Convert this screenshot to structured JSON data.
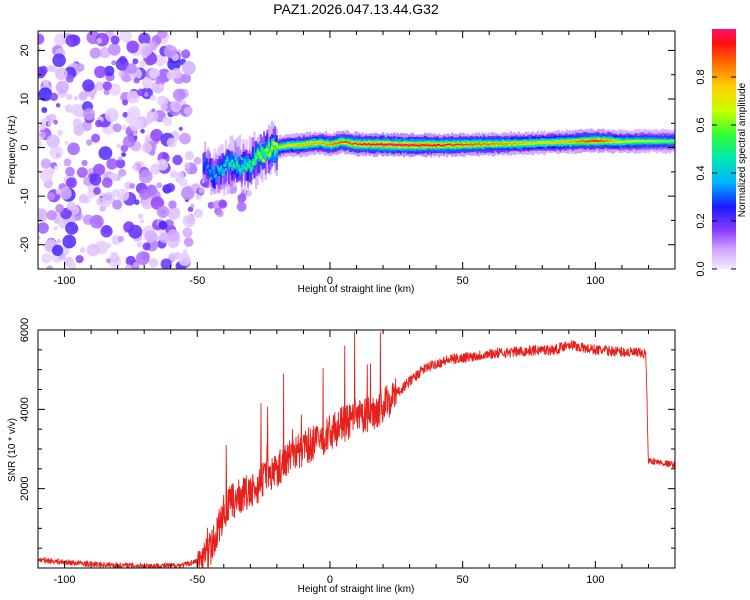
{
  "title": "PAZ1.2026.047.13.44.G32",
  "chart_data": [
    {
      "type": "heatmap",
      "xlabel": "Height of straight line (km)",
      "ylabel": "Frequency (Hz)",
      "xlim": [
        -110,
        130
      ],
      "ylim": [
        -25,
        24
      ],
      "xticks": [
        -100,
        -50,
        0,
        50,
        100
      ],
      "xtick_labels": [
        "-100",
        "-50",
        "0",
        "50",
        "100"
      ],
      "yticks": [
        20,
        10,
        0,
        -10,
        -20
      ],
      "ytick_labels": [
        "20",
        "10",
        "0",
        "-10",
        "-20"
      ],
      "colorbar": {
        "label": "Normalized spectral amplitude",
        "range": [
          0,
          1
        ],
        "ticks": [
          0.0,
          0.2,
          0.4,
          0.6,
          0.8
        ],
        "tick_labels": [
          "0.0",
          "0.2",
          "0.4",
          "0.6",
          "0.8"
        ]
      },
      "ridge": {
        "x": [
          -48,
          -44,
          -40,
          -36,
          -32,
          -28,
          -24,
          -20,
          -16,
          -12,
          -8,
          -4,
          0,
          4,
          8,
          12,
          20,
          30,
          40,
          50,
          60,
          70,
          80,
          90,
          100,
          110,
          120,
          130
        ],
        "freq": [
          -3,
          -6,
          -4,
          -3,
          -4,
          -2,
          -1,
          0,
          0.5,
          0.5,
          0.8,
          1,
          0.6,
          1.2,
          0.8,
          0.7,
          0.6,
          0.5,
          0.5,
          0.6,
          0.7,
          0.8,
          1.0,
          1.2,
          1.4,
          1.2,
          1.3,
          1.3
        ],
        "amplitude": [
          0.3,
          0.4,
          0.45,
          0.5,
          0.5,
          0.6,
          0.65,
          0.7,
          0.75,
          0.8,
          0.8,
          0.8,
          0.85,
          0.9,
          0.9,
          0.95,
          1.0,
          1.0,
          0.95,
          0.9,
          0.85,
          0.8,
          0.75,
          0.8,
          0.95,
          0.7,
          0.65,
          0.6
        ]
      }
    },
    {
      "type": "line",
      "xlabel": "Height of straight line (km)",
      "ylabel": "SNR (10 * v/v)",
      "xlim": [
        -110,
        130
      ],
      "ylim": [
        0,
        6000
      ],
      "xticks": [
        -100,
        -50,
        0,
        50,
        100
      ],
      "xtick_labels": [
        "-100",
        "-50",
        "0",
        "50",
        "100"
      ],
      "yticks": [
        2000,
        4000,
        6000
      ],
      "ytick_labels": [
        "2000",
        "4000",
        "6000"
      ],
      "series": [
        {
          "name": "SNR",
          "color": "#e8201c",
          "x": [
            -110,
            -100,
            -90,
            -80,
            -70,
            -60,
            -55,
            -50,
            -47,
            -44,
            -42,
            -40,
            -38,
            -36,
            -34,
            -32,
            -30,
            -28,
            -26,
            -24,
            -22,
            -20,
            -18,
            -16,
            -14,
            -12,
            -10,
            -8,
            -6,
            -4,
            -2,
            0,
            2,
            4,
            6,
            8,
            10,
            12,
            14,
            16,
            18,
            20,
            25,
            30,
            35,
            40,
            45,
            50,
            60,
            70,
            80,
            85,
            90,
            95,
            100,
            110,
            119,
            120,
            121,
            125,
            130
          ],
          "values": [
            180,
            120,
            70,
            40,
            30,
            30,
            50,
            150,
            300,
            600,
            1000,
            1400,
            1600,
            1700,
            1800,
            1900,
            1850,
            2000,
            2200,
            2300,
            2400,
            2500,
            2600,
            2800,
            2900,
            2950,
            3000,
            3100,
            3150,
            3200,
            3300,
            3400,
            3500,
            3600,
            3650,
            3700,
            3750,
            3800,
            3850,
            3900,
            4000,
            4100,
            4400,
            4700,
            5000,
            5150,
            5250,
            5300,
            5400,
            5450,
            5500,
            5500,
            5650,
            5550,
            5500,
            5450,
            5400,
            2700,
            2700,
            2650,
            2600
          ]
        }
      ]
    }
  ]
}
